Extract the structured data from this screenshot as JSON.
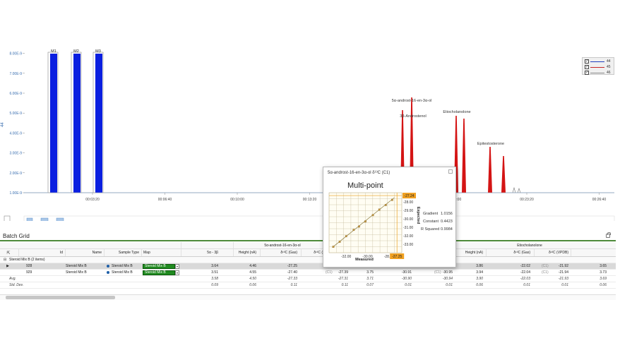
{
  "chromatogram": {
    "y_axis_label": "44",
    "y_ticks": [
      "1.00E-9",
      "2.00E-9",
      "3.00E-9",
      "4.00E-9",
      "5.00E-9",
      "6.00E-9",
      "7.00E-9",
      "8.00E-9"
    ],
    "x_ticks": [
      "00:03:20",
      "00:06:40",
      "00:10:00",
      "00:13:20",
      "00:16:40",
      "00:20:00",
      "00:23:20",
      "00:26:40"
    ],
    "reference_peaks": [
      "M1",
      "M2",
      "M3"
    ],
    "sample_peaks": [
      "5α-androst-16-en-3α-ol",
      "3β-Androstenol",
      "Etiocholanolone",
      "Epitestosterone"
    ],
    "legend": [
      {
        "label": "44",
        "color": "#1f3fbf",
        "checked": "✓"
      },
      {
        "label": "45",
        "color": "#c82828",
        "checked": "✓"
      },
      {
        "label": "46",
        "color": "#888888",
        "checked": "✓"
      }
    ],
    "colors": {
      "reference": "#0a1fe0",
      "sample": "#d41414",
      "baseline": "#3a6fb0"
    }
  },
  "batch_grid": {
    "title": "Batch Grid",
    "group_headers": [
      "5α-androst-16-en-3α-ol",
      "Etiocholanolone"
    ],
    "columns": [
      "Id",
      "Name",
      "Sample Type",
      "Map",
      "5α - 3β",
      "Height (nA)",
      "δ¹³C (Gas)",
      "δ¹³C (",
      "Height (nA)",
      "δ¹³C (Gas)",
      "δ¹³C (VPDB)"
    ],
    "group_label": "Steroid Mix B (2 items)",
    "rows": [
      {
        "pointer": "▶",
        "id": "928",
        "name": "Steroid Mix B",
        "sample_type": "Steroid Mix B",
        "map": "Steroid Mix B",
        "ratio": "3.64",
        "h1": "4.46",
        "gas1": "-27.25",
        "vpdb1": "-27.24",
        "c1": "(C1)",
        "h2": "3.66",
        "gas2": "-30.89",
        "vpdb2": "-30.93",
        "c2": "(C1)",
        "h3": "3.86",
        "gas3": "-22.02",
        "vpdb3": "-21.92",
        "c3": "(C1)",
        "last": "3.65"
      },
      {
        "pointer": "",
        "id": "929",
        "name": "Steroid Mix B",
        "sample_type": "Steroid Mix B",
        "map": "Steroid Mix B",
        "ratio": "3.51",
        "h1": "4.55",
        "gas1": "-27.40",
        "vpdb1": "-27.39",
        "c1": "(C1)",
        "h2": "3.75",
        "gas2": "-30.91",
        "vpdb2": "-30.95",
        "c2": "(C1)",
        "h3": "3.94",
        "gas3": "-22.04",
        "vpdb3": "-21.94",
        "c3": "(C1)",
        "last": "3.73"
      }
    ],
    "avg": {
      "label": "Avg.",
      "ratio": "3.58",
      "h1": "4.50",
      "gas1": "-27.33",
      "vpdb1": "-27.31",
      "h2": "3.71",
      "gas2": "-30.90",
      "vpdb2": "-30.94",
      "h3": "3.90",
      "gas3": "-22.03",
      "vpdb3": "-21.93",
      "last": "3.69"
    },
    "std": {
      "label": "Std. Dev.",
      "ratio": "0.09",
      "h1": "0.06",
      "gas1": "0.11",
      "vpdb1": "0.11",
      "h2": "0.07",
      "gas2": "0.01",
      "vpdb2": "0.01",
      "h3": "0.06",
      "gas3": "0.01",
      "vpdb3": "0.01",
      "last": "0.06"
    }
  },
  "popup": {
    "title": "5α-androst-16-en-3α-ol δ¹³C (C1)",
    "heading": "Multi-point",
    "gradient_label": "Gradient",
    "gradient": "1.0156",
    "constant_label": "Constant",
    "constant": "0.4423",
    "rsq_label": "R Squared",
    "rsq": "0.9984",
    "x_label": "Measured",
    "y_label": "Expected",
    "highlight_y": "-27.24",
    "highlight_x": "-27.25"
  },
  "chart_data": {
    "type": "scatter",
    "title": "Multi-point",
    "xlabel": "Measured",
    "ylabel": "Expected",
    "x_ticks": [
      -32.0,
      -30.0,
      -28.0
    ],
    "y_ticks": [
      -28.0,
      -29.0,
      -30.0,
      -31.0,
      -32.0,
      -33.0
    ],
    "xlim": [
      -33.6,
      -26.8
    ],
    "ylim": [
      -34.0,
      -26.9
    ],
    "points": [
      {
        "x": -33.2,
        "y": -33.3
      },
      {
        "x": -32.6,
        "y": -32.7
      },
      {
        "x": -32.0,
        "y": -32.05
      },
      {
        "x": -31.3,
        "y": -31.3
      },
      {
        "x": -30.8,
        "y": -30.9
      },
      {
        "x": -30.2,
        "y": -30.3
      },
      {
        "x": -29.5,
        "y": -29.55
      },
      {
        "x": -28.9,
        "y": -28.9
      },
      {
        "x": -28.3,
        "y": -28.35
      },
      {
        "x": -27.7,
        "y": -27.75
      }
    ],
    "fit": {
      "gradient": 1.0156,
      "constant": 0.4423
    },
    "highlight": {
      "x": -27.25,
      "y": -27.24
    },
    "grid": true
  }
}
